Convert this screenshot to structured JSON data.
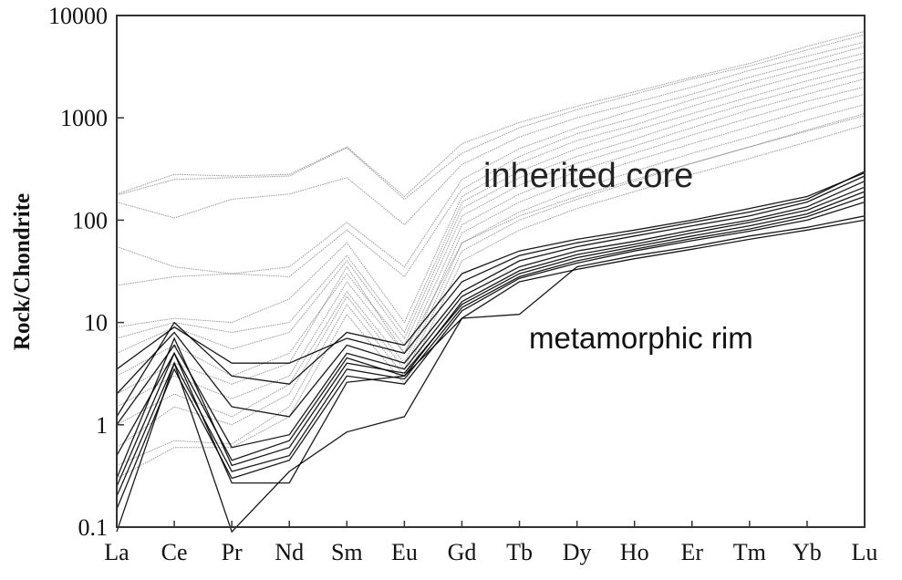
{
  "chart_data": {
    "type": "line",
    "title": "",
    "xlabel": "",
    "ylabel": "Rock/Chondrite",
    "yscale": "log",
    "ylim": [
      0.1,
      10000
    ],
    "yticks": [
      "0.1",
      "1",
      "10",
      "100",
      "1000",
      "10000"
    ],
    "categories": [
      "La",
      "Ce",
      "Pr",
      "Nd",
      "Sm",
      "Eu",
      "Gd",
      "Tb",
      "Dy",
      "Ho",
      "Er",
      "Tm",
      "Yb",
      "Lu"
    ],
    "grid": false,
    "legend": "none",
    "annotations": [
      {
        "text": "inherited core",
        "x": "Gd-Er",
        "y": 200
      },
      {
        "text": "metamorphic rim",
        "x": "Dy-Yb",
        "y": 7
      }
    ],
    "series": [
      {
        "name": "inherited core 1",
        "group": "inherited core",
        "values": [
          180,
          280,
          270,
          280,
          520,
          170,
          560,
          900,
          1300,
          1800,
          2500,
          3400,
          5000,
          7000
        ]
      },
      {
        "name": "inherited core 2",
        "group": "inherited core",
        "values": [
          175,
          250,
          260,
          270,
          510,
          160,
          450,
          800,
          1200,
          1700,
          2400,
          3200,
          4600,
          6500
        ]
      },
      {
        "name": "inherited core 3",
        "group": "inherited core",
        "values": [
          150,
          105,
          160,
          180,
          260,
          90,
          350,
          650,
          1000,
          1400,
          2000,
          2900,
          4000,
          5500
        ]
      },
      {
        "name": "inherited core 4",
        "group": "inherited core",
        "values": [
          55,
          35,
          30,
          35,
          95,
          35,
          250,
          500,
          800,
          1200,
          1700,
          2500,
          3500,
          5000
        ]
      },
      {
        "name": "inherited core 5",
        "group": "inherited core",
        "values": [
          23,
          28,
          30,
          28,
          80,
          28,
          200,
          420,
          700,
          1000,
          1500,
          2200,
          3100,
          4300
        ]
      },
      {
        "name": "inherited core 6",
        "group": "inherited core",
        "values": [
          9,
          11,
          10,
          17,
          60,
          10,
          170,
          360,
          600,
          850,
          1300,
          1900,
          2700,
          3800
        ]
      },
      {
        "name": "inherited core 7",
        "group": "inherited core",
        "values": [
          7,
          10,
          8,
          10,
          45,
          8,
          150,
          300,
          500,
          750,
          1100,
          1600,
          2300,
          3200
        ]
      },
      {
        "name": "inherited core 8",
        "group": "inherited core",
        "values": [
          5,
          9,
          5.5,
          8,
          40,
          7,
          130,
          260,
          420,
          620,
          950,
          1400,
          2000,
          2800
        ]
      },
      {
        "name": "inherited core 9",
        "group": "inherited core",
        "values": [
          3,
          6,
          3,
          5,
          30,
          6,
          110,
          220,
          360,
          530,
          800,
          1200,
          1700,
          2400
        ]
      },
      {
        "name": "inherited core 10",
        "group": "inherited core",
        "values": [
          1.5,
          3,
          1.8,
          3,
          25,
          5,
          90,
          180,
          300,
          450,
          680,
          1000,
          1450,
          2000
        ]
      },
      {
        "name": "inherited core 11",
        "group": "inherited core",
        "values": [
          1,
          2,
          1.2,
          2.5,
          20,
          4,
          75,
          150,
          250,
          380,
          560,
          820,
          1200,
          1700
        ]
      },
      {
        "name": "inherited core 12",
        "group": "inherited core",
        "values": [
          0.6,
          1.5,
          1,
          2,
          18,
          3.5,
          60,
          120,
          200,
          300,
          450,
          650,
          950,
          1350
        ]
      },
      {
        "name": "inherited core 13",
        "group": "inherited core",
        "values": [
          0.4,
          0.7,
          0.65,
          1.5,
          15,
          3,
          50,
          100,
          160,
          240,
          360,
          520,
          760,
          1100
        ]
      },
      {
        "name": "inherited core 14",
        "group": "inherited core",
        "values": [
          0.3,
          0.6,
          0.6,
          1.2,
          12,
          2.5,
          40,
          80,
          130,
          190,
          280,
          400,
          580,
          850
        ]
      },
      {
        "name": "inherited core 15",
        "group": "inherited core",
        "values": [
          2,
          4,
          2.5,
          4,
          35,
          5,
          60,
          110,
          170,
          250,
          360,
          520,
          740,
          1050
        ]
      },
      {
        "name": "metamorphic rim 1",
        "group": "metamorphic rim",
        "values": [
          3.5,
          9,
          4,
          4,
          7,
          5,
          25,
          45,
          60,
          75,
          95,
          120,
          160,
          300
        ]
      },
      {
        "name": "metamorphic rim 2",
        "group": "metamorphic rim",
        "values": [
          2,
          8,
          1.5,
          1.2,
          6,
          4,
          20,
          40,
          55,
          70,
          88,
          110,
          150,
          270
        ]
      },
      {
        "name": "metamorphic rim 3",
        "group": "metamorphic rim",
        "values": [
          1,
          6,
          0.6,
          0.8,
          5,
          3.5,
          18,
          35,
          50,
          62,
          80,
          100,
          135,
          240
        ]
      },
      {
        "name": "metamorphic rim 4",
        "group": "metamorphic rim",
        "values": [
          0.5,
          5,
          0.45,
          0.7,
          4.5,
          3,
          16,
          32,
          46,
          58,
          75,
          95,
          125,
          210
        ]
      },
      {
        "name": "metamorphic rim 5",
        "group": "metamorphic rim",
        "values": [
          0.3,
          7,
          0.4,
          0.6,
          4,
          3.2,
          15,
          30,
          43,
          55,
          70,
          88,
          115,
          190
        ]
      },
      {
        "name": "metamorphic rim 6",
        "group": "metamorphic rim",
        "values": [
          0.2,
          4,
          0.35,
          0.5,
          3.5,
          2.8,
          14,
          28,
          40,
          52,
          66,
          82,
          108,
          170
        ]
      },
      {
        "name": "metamorphic rim 7",
        "group": "metamorphic rim",
        "values": [
          0.15,
          3.5,
          0.3,
          0.45,
          3,
          2.5,
          13,
          27,
          38,
          50,
          63,
          78,
          100,
          150
        ]
      },
      {
        "name": "metamorphic rim 8",
        "group": "metamorphic rim",
        "values": [
          0.25,
          5,
          0.27,
          0.27,
          2.6,
          3,
          11,
          12,
          35,
          45,
          55,
          70,
          85,
          110
        ]
      },
      {
        "name": "metamorphic rim 9",
        "group": "metamorphic rim",
        "values": [
          0.09,
          4,
          0.09,
          0.35,
          0.85,
          1.2,
          11,
          25,
          33,
          42,
          52,
          65,
          80,
          100
        ]
      },
      {
        "name": "metamorphic rim 10",
        "group": "metamorphic rim",
        "values": [
          1.2,
          10,
          3,
          2.5,
          8,
          6,
          30,
          50,
          65,
          80,
          100,
          130,
          170,
          290
        ]
      }
    ]
  },
  "axes": {
    "ylabel": "Rock/Chondrite",
    "yticks": [
      "0.1",
      "1",
      "10",
      "100",
      "1000",
      "10000"
    ],
    "xticks": [
      "La",
      "Ce",
      "Pr",
      "Nd",
      "Sm",
      "Eu",
      "Gd",
      "Tb",
      "Dy",
      "Ho",
      "Er",
      "Tm",
      "Yb",
      "Lu"
    ]
  },
  "annotations": {
    "core_label": "inherited core",
    "rim_label": "metamorphic rim"
  },
  "colors": {
    "core": "#8a8a8a",
    "rim": "#000000",
    "frame": "#333333"
  }
}
